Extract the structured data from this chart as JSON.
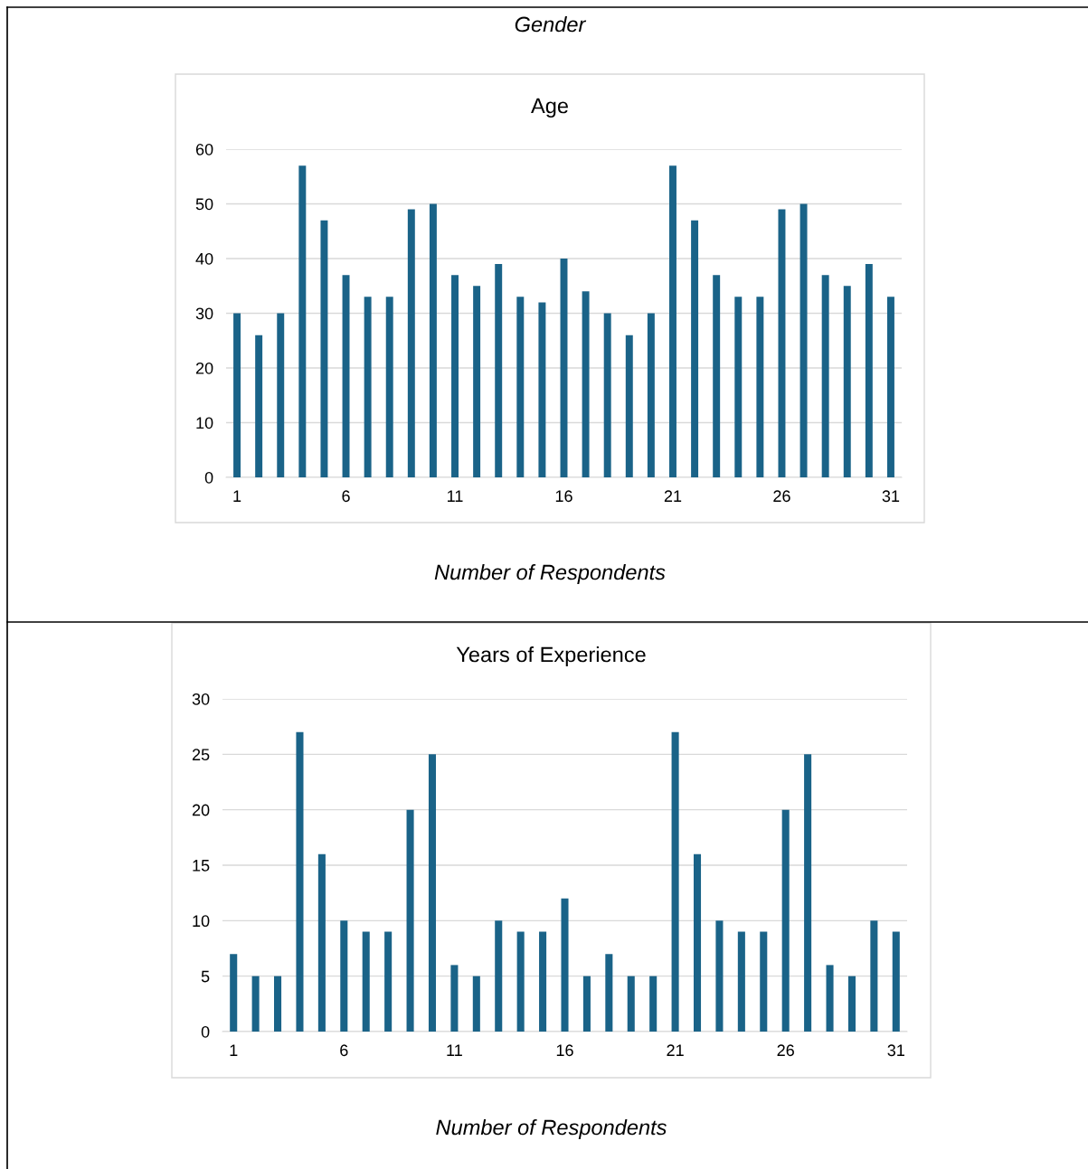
{
  "chart_data": [
    {
      "type": "bar",
      "title": "Age",
      "annotations": [
        "Gender",
        "Number of Respondents"
      ],
      "categories": [
        "1",
        null,
        null,
        null,
        null,
        "6",
        null,
        null,
        null,
        null,
        "11",
        null,
        null,
        null,
        null,
        "16",
        null,
        null,
        null,
        null,
        "21",
        null,
        null,
        null,
        null,
        "26",
        null,
        null,
        null,
        null,
        "31"
      ],
      "values": [
        30,
        26,
        30,
        57,
        47,
        37,
        33,
        33,
        49,
        50,
        37,
        35,
        39,
        33,
        32,
        40,
        34,
        30,
        26,
        30,
        57,
        47,
        37,
        33,
        33,
        49,
        50,
        37,
        35,
        39,
        33
      ],
      "color": "#1a6388",
      "ylim": [
        0,
        60
      ],
      "yticks": [
        0,
        10,
        20,
        30,
        40,
        50,
        60
      ],
      "grid": "y"
    },
    {
      "type": "bar",
      "title": "Years of Experience",
      "annotations": [
        "Number of Respondents"
      ],
      "categories": [
        "1",
        null,
        null,
        null,
        null,
        "6",
        null,
        null,
        null,
        null,
        "11",
        null,
        null,
        null,
        null,
        "16",
        null,
        null,
        null,
        null,
        "21",
        null,
        null,
        null,
        null,
        "26",
        null,
        null,
        null,
        null,
        "31"
      ],
      "values": [
        7,
        5,
        5,
        27,
        16,
        10,
        9,
        9,
        20,
        25,
        6,
        5,
        10,
        9,
        9,
        12,
        5,
        7,
        5,
        5,
        27,
        16,
        10,
        9,
        9,
        20,
        25,
        6,
        5,
        10,
        9
      ],
      "color": "#1a6388",
      "ylim": [
        0,
        30
      ],
      "yticks": [
        0,
        5,
        10,
        15,
        20,
        25,
        30
      ],
      "grid": "y"
    }
  ]
}
